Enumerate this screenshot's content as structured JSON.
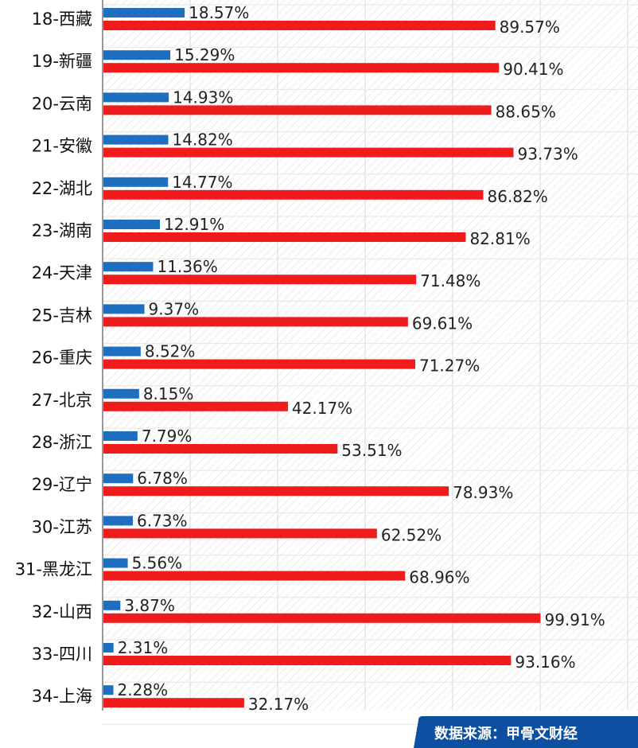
{
  "chart_data": {
    "type": "bar",
    "orientation": "horizontal",
    "categories": [
      "18-西藏",
      "19-新疆",
      "20-云南",
      "21-安徽",
      "22-湖北",
      "23-湖南",
      "24-天津",
      "25-吉林",
      "26-重庆",
      "27-北京",
      "28-浙江",
      "29-辽宁",
      "30-江苏",
      "31-黑龙江",
      "32-山西",
      "33-四川",
      "34-上海"
    ],
    "series": [
      {
        "labels": [
          "18.57%",
          "15.29%",
          "14.93%",
          "14.82%",
          "14.77%",
          "12.91%",
          "11.36%",
          "9.37%",
          "8.52%",
          "8.15%",
          "7.79%",
          "6.78%",
          "6.73%",
          "5.56%",
          "3.87%",
          "2.31%",
          "2.28%"
        ],
        "values": [
          18.57,
          15.29,
          14.93,
          14.82,
          14.77,
          12.91,
          11.36,
          9.37,
          8.52,
          8.15,
          7.79,
          6.78,
          6.73,
          5.56,
          3.87,
          2.31,
          2.28
        ],
        "color": "#1f6fc0"
      },
      {
        "labels": [
          "89.57%",
          "90.41%",
          "88.65%",
          "93.73%",
          "86.82%",
          "82.81%",
          "71.48%",
          "69.61%",
          "71.27%",
          "42.17%",
          "53.51%",
          "78.93%",
          "62.52%",
          "68.96%",
          "99.91%",
          "93.16%",
          "32.17%"
        ],
        "values": [
          89.57,
          90.41,
          88.65,
          93.73,
          86.82,
          82.81,
          71.48,
          69.61,
          71.27,
          42.17,
          53.51,
          78.93,
          62.52,
          68.96,
          99.91,
          93.16,
          32.17
        ],
        "color": "#ee1c1c"
      }
    ],
    "xlim": [
      0,
      125
    ],
    "grid": true,
    "gridline_color": "#d9d9d9",
    "hatch_color": "#ebebeb"
  },
  "source": {
    "text": "数据来源：甲骨文财经",
    "color": "#0d4fa0"
  }
}
